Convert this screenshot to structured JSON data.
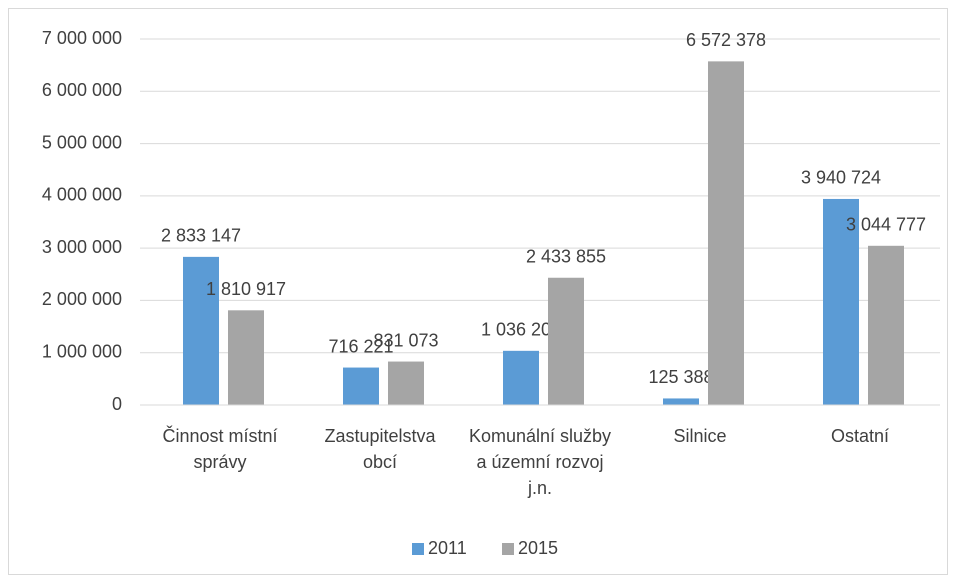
{
  "chart_data": {
    "type": "bar",
    "categories": [
      "Činnost místní správy",
      "Zastupitelstva obcí",
      "Komunální služby a územní rozvoj j.n.",
      "Silnice",
      "Ostatní"
    ],
    "series": [
      {
        "name": "2011",
        "color": "#5b9bd5",
        "values": [
          2833147,
          716221,
          1036200,
          125388,
          3940724
        ],
        "value_labels": [
          "2 833 147",
          "716 221",
          "1 036 200",
          "125 388",
          "3 940 724"
        ]
      },
      {
        "name": "2015",
        "color": "#a5a5a5",
        "values": [
          1810917,
          831073,
          2433855,
          6572378,
          3044777
        ],
        "value_labels": [
          "1 810 917",
          "831 073",
          "2 433 855",
          "6 572 378",
          "3 044 777"
        ]
      }
    ],
    "ylim": [
      0,
      7000000
    ],
    "yticks": [
      {
        "value": 0,
        "label": "0"
      },
      {
        "value": 1000000,
        "label": "1 000 000"
      },
      {
        "value": 2000000,
        "label": "2 000 000"
      },
      {
        "value": 3000000,
        "label": "3 000 000"
      },
      {
        "value": 4000000,
        "label": "4 000 000"
      },
      {
        "value": 5000000,
        "label": "5 000 000"
      },
      {
        "value": 6000000,
        "label": "6 000 000"
      },
      {
        "value": 7000000,
        "label": "7 000 000"
      }
    ],
    "grid": true,
    "legend": "bottom"
  }
}
